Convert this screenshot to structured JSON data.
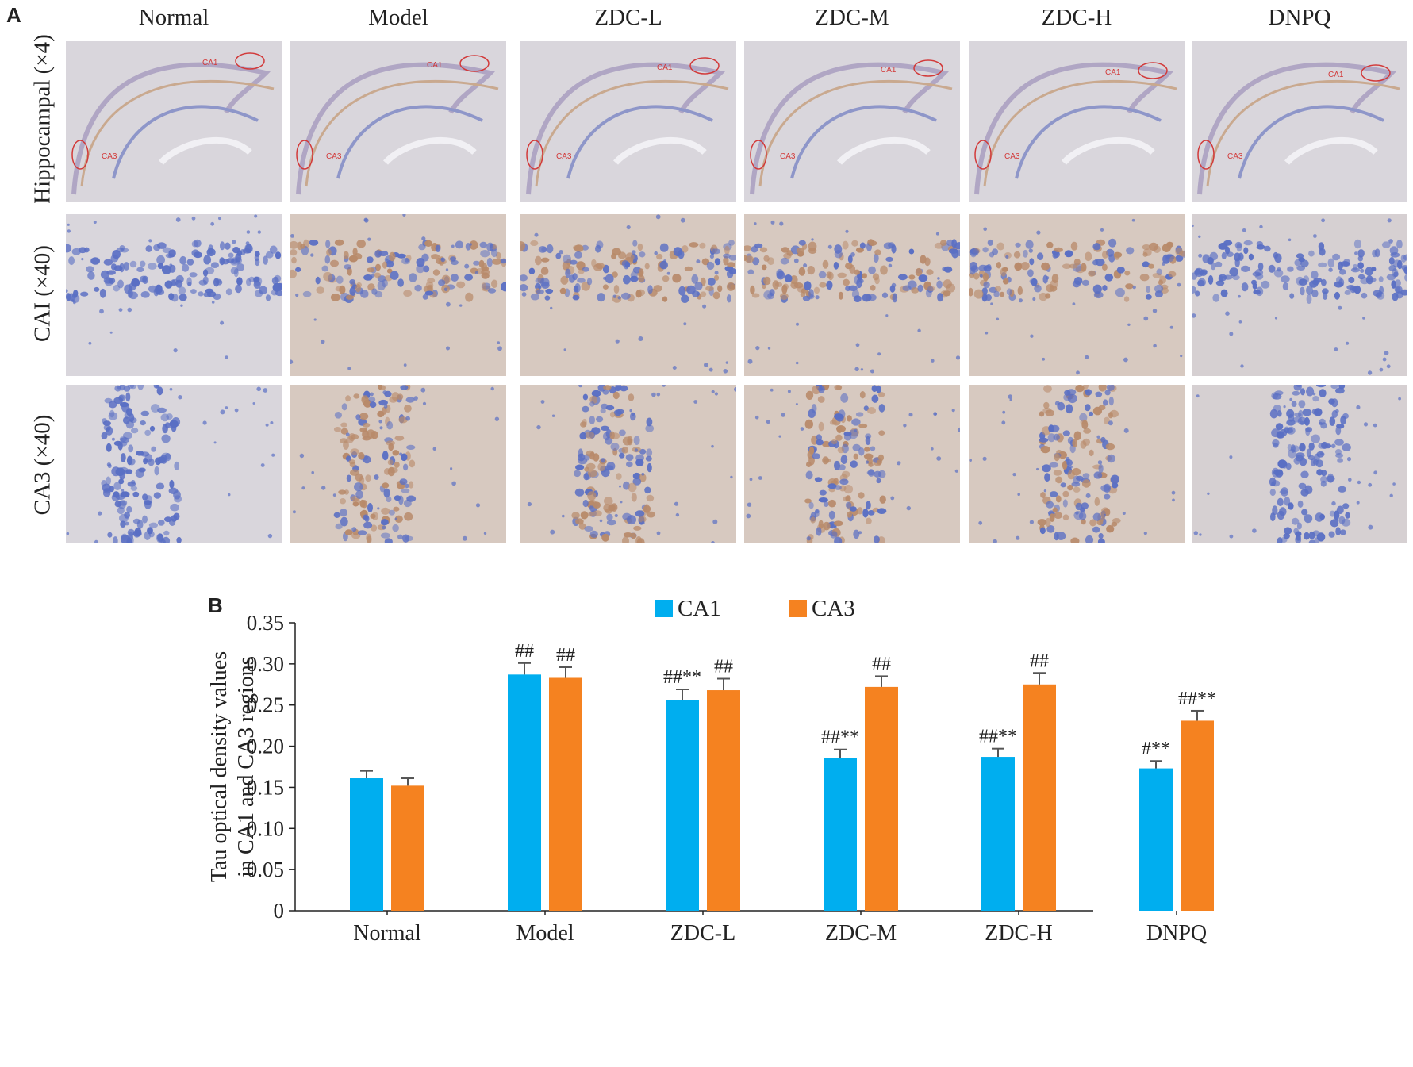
{
  "panel_a": {
    "label": "A",
    "columns": [
      "Normal",
      "Model",
      "ZDC-L",
      "ZDC-M",
      "ZDC-H",
      "DNPQ"
    ],
    "rows": [
      "Hippocampal (×4)",
      "CAI (×40)",
      "CA3 (×40)"
    ],
    "micrograph_annotations": {
      "hippocampal": [
        [
          "CA1",
          "CA3"
        ],
        [
          "CA1",
          "CA3"
        ],
        [
          "CA1",
          "CA3"
        ],
        [
          "CA1",
          "CA3"
        ],
        [
          "CA1",
          "CA3"
        ],
        [
          "CA1",
          "CA3"
        ]
      ]
    },
    "colors": {
      "background_tissue": "#d9d6dc",
      "stain_blue": "#5a6fc4",
      "stain_brown": "#b88a6a",
      "annotation_red": "#d23a3a"
    }
  },
  "panel_b": {
    "label": "B"
  },
  "chart_data": {
    "type": "bar",
    "categories": [
      "Normal",
      "Model",
      "ZDC-L",
      "ZDC-M",
      "ZDC-H",
      "DNPQ"
    ],
    "series": [
      {
        "name": "CA1",
        "color": "#00aeef",
        "values": [
          0.161,
          0.287,
          0.256,
          0.186,
          0.187,
          0.173
        ],
        "errors": [
          0.009,
          0.014,
          0.013,
          0.01,
          0.01,
          0.009
        ],
        "annotations": [
          "",
          "##",
          "##**",
          "##**",
          "##**",
          "#**"
        ]
      },
      {
        "name": "CA3",
        "color": "#f58220",
        "values": [
          0.152,
          0.283,
          0.268,
          0.272,
          0.275,
          0.231
        ],
        "errors": [
          0.009,
          0.013,
          0.014,
          0.013,
          0.014,
          0.012
        ],
        "annotations": [
          "",
          "##",
          "##",
          "##",
          "##",
          "##**"
        ]
      }
    ],
    "ylabel": [
      "Tau optical density values",
      "in CA1 and CA3 regions"
    ],
    "ylim": [
      0,
      0.35
    ],
    "yticks": [
      "0",
      "0.05",
      "0.10",
      "0.15",
      "0.20",
      "0.25",
      "0.30",
      "0.35"
    ],
    "ytick_values": [
      0,
      0.05,
      0.1,
      0.15,
      0.2,
      0.25,
      0.3,
      0.35
    ],
    "grid": false,
    "legend_position": "top-center"
  }
}
